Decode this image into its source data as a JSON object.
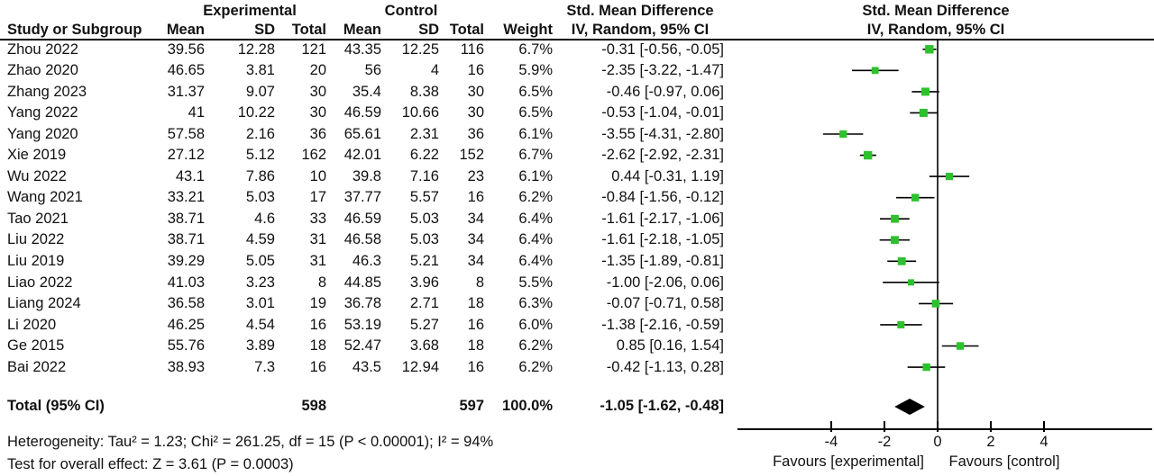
{
  "header": {
    "group_experimental": "Experimental",
    "group_control": "Control",
    "smd_col_line1": "Std. Mean Difference",
    "smd_col_line2": "IV, Random, 95% CI",
    "plot_col_line1": "Std. Mean Difference",
    "plot_col_line2": "IV, Random, 95% CI",
    "study_col": "Study or Subgroup",
    "mean_e": "Mean",
    "sd_e": "SD",
    "total_e": "Total",
    "mean_c": "Mean",
    "sd_c": "SD",
    "total_c": "Total",
    "weight": "Weight"
  },
  "footer": {
    "heterogeneity": "Heterogeneity: Tau² = 1.23; Chi² = 261.25, df = 15 (P < 0.00001); I² = 94%",
    "overall_effect": "Test for overall effect: Z = 3.61 (P = 0.0003)"
  },
  "chart_data": {
    "type": "scatter",
    "subtype": "forest-plot",
    "title": "Std. Mean Difference",
    "xlabel": "IV, Random, 95% CI",
    "x_ticks": [
      -4,
      -2,
      0,
      2,
      4
    ],
    "xlim": [
      -7.5,
      8.1
    ],
    "grid": false,
    "marker_color": "#2dc22d",
    "line_color": "#000000",
    "favours_left": "Favours [experimental]",
    "favours_right": "Favours [control]",
    "studies": [
      {
        "study": "Zhou 2022",
        "mean_e": "39.56",
        "sd_e": "12.28",
        "n_e": "121",
        "mean_c": "43.35",
        "sd_c": "12.25",
        "n_c": "116",
        "weight": "6.7%",
        "ci_text": "-0.31 [-0.56, -0.05]",
        "effect": -0.31,
        "lo": -0.56,
        "hi": -0.05
      },
      {
        "study": "Zhao 2020",
        "mean_e": "46.65",
        "sd_e": "3.81",
        "n_e": "20",
        "mean_c": "56",
        "sd_c": "4",
        "n_c": "16",
        "weight": "5.9%",
        "ci_text": "-2.35 [-3.22, -1.47]",
        "effect": -2.35,
        "lo": -3.22,
        "hi": -1.47
      },
      {
        "study": "Zhang 2023",
        "mean_e": "31.37",
        "sd_e": "9.07",
        "n_e": "30",
        "mean_c": "35.4",
        "sd_c": "8.38",
        "n_c": "30",
        "weight": "6.5%",
        "ci_text": "-0.46 [-0.97, 0.06]",
        "effect": -0.46,
        "lo": -0.97,
        "hi": 0.06
      },
      {
        "study": "Yang 2022",
        "mean_e": "41",
        "sd_e": "10.22",
        "n_e": "30",
        "mean_c": "46.59",
        "sd_c": "10.66",
        "n_c": "30",
        "weight": "6.5%",
        "ci_text": "-0.53 [-1.04, -0.01]",
        "effect": -0.53,
        "lo": -1.04,
        "hi": -0.01
      },
      {
        "study": "Yang 2020",
        "mean_e": "57.58",
        "sd_e": "2.16",
        "n_e": "36",
        "mean_c": "65.61",
        "sd_c": "2.31",
        "n_c": "36",
        "weight": "6.1%",
        "ci_text": "-3.55 [-4.31, -2.80]",
        "effect": -3.55,
        "lo": -4.31,
        "hi": -2.8
      },
      {
        "study": "Xie 2019",
        "mean_e": "27.12",
        "sd_e": "5.12",
        "n_e": "162",
        "mean_c": "42.01",
        "sd_c": "6.22",
        "n_c": "152",
        "weight": "6.7%",
        "ci_text": "-2.62 [-2.92, -2.31]",
        "effect": -2.62,
        "lo": -2.92,
        "hi": -2.31
      },
      {
        "study": "Wu 2022",
        "mean_e": "43.1",
        "sd_e": "7.86",
        "n_e": "10",
        "mean_c": "39.8",
        "sd_c": "7.16",
        "n_c": "23",
        "weight": "6.1%",
        "ci_text": "0.44 [-0.31, 1.19]",
        "effect": 0.44,
        "lo": -0.31,
        "hi": 1.19
      },
      {
        "study": "Wang 2021",
        "mean_e": "33.21",
        "sd_e": "5.03",
        "n_e": "17",
        "mean_c": "37.77",
        "sd_c": "5.57",
        "n_c": "16",
        "weight": "6.2%",
        "ci_text": "-0.84 [-1.56, -0.12]",
        "effect": -0.84,
        "lo": -1.56,
        "hi": -0.12
      },
      {
        "study": "Tao 2021",
        "mean_e": "38.71",
        "sd_e": "4.6",
        "n_e": "33",
        "mean_c": "46.59",
        "sd_c": "5.03",
        "n_c": "34",
        "weight": "6.4%",
        "ci_text": "-1.61 [-2.17, -1.06]",
        "effect": -1.61,
        "lo": -2.17,
        "hi": -1.06
      },
      {
        "study": "Liu 2022",
        "mean_e": "38.71",
        "sd_e": "4.59",
        "n_e": "31",
        "mean_c": "46.58",
        "sd_c": "5.03",
        "n_c": "34",
        "weight": "6.4%",
        "ci_text": "-1.61 [-2.18, -1.05]",
        "effect": -1.61,
        "lo": -2.18,
        "hi": -1.05
      },
      {
        "study": "Liu 2019",
        "mean_e": "39.29",
        "sd_e": "5.05",
        "n_e": "31",
        "mean_c": "46.3",
        "sd_c": "5.21",
        "n_c": "34",
        "weight": "6.4%",
        "ci_text": "-1.35 [-1.89, -0.81]",
        "effect": -1.35,
        "lo": -1.89,
        "hi": -0.81
      },
      {
        "study": "Liao 2022",
        "mean_e": "41.03",
        "sd_e": "3.23",
        "n_e": "8",
        "mean_c": "44.85",
        "sd_c": "3.96",
        "n_c": "8",
        "weight": "5.5%",
        "ci_text": "-1.00 [-2.06, 0.06]",
        "effect": -1.0,
        "lo": -2.06,
        "hi": 0.06
      },
      {
        "study": "Liang 2024",
        "mean_e": "36.58",
        "sd_e": "3.01",
        "n_e": "19",
        "mean_c": "36.78",
        "sd_c": "2.71",
        "n_c": "18",
        "weight": "6.3%",
        "ci_text": "-0.07 [-0.71, 0.58]",
        "effect": -0.07,
        "lo": -0.71,
        "hi": 0.58
      },
      {
        "study": "Li 2020",
        "mean_e": "46.25",
        "sd_e": "4.54",
        "n_e": "16",
        "mean_c": "53.19",
        "sd_c": "5.27",
        "n_c": "16",
        "weight": "6.0%",
        "ci_text": "-1.38 [-2.16, -0.59]",
        "effect": -1.38,
        "lo": -2.16,
        "hi": -0.59
      },
      {
        "study": "Ge 2015",
        "mean_e": "55.76",
        "sd_e": "3.89",
        "n_e": "18",
        "mean_c": "52.47",
        "sd_c": "3.68",
        "n_c": "18",
        "weight": "6.2%",
        "ci_text": "0.85 [0.16, 1.54]",
        "effect": 0.85,
        "lo": 0.16,
        "hi": 1.54
      },
      {
        "study": "Bai 2022",
        "mean_e": "38.93",
        "sd_e": "7.3",
        "n_e": "16",
        "mean_c": "43.5",
        "sd_c": "12.94",
        "n_c": "16",
        "weight": "6.2%",
        "ci_text": "-0.42 [-1.13, 0.28]",
        "effect": -0.42,
        "lo": -1.13,
        "hi": 0.28
      }
    ],
    "total": {
      "label": "Total (95% CI)",
      "n_e": "598",
      "n_c": "597",
      "weight": "100.0%",
      "ci_text": "-1.05 [-1.62, -0.48]",
      "effect": -1.05,
      "lo": -1.62,
      "hi": -0.48
    }
  }
}
